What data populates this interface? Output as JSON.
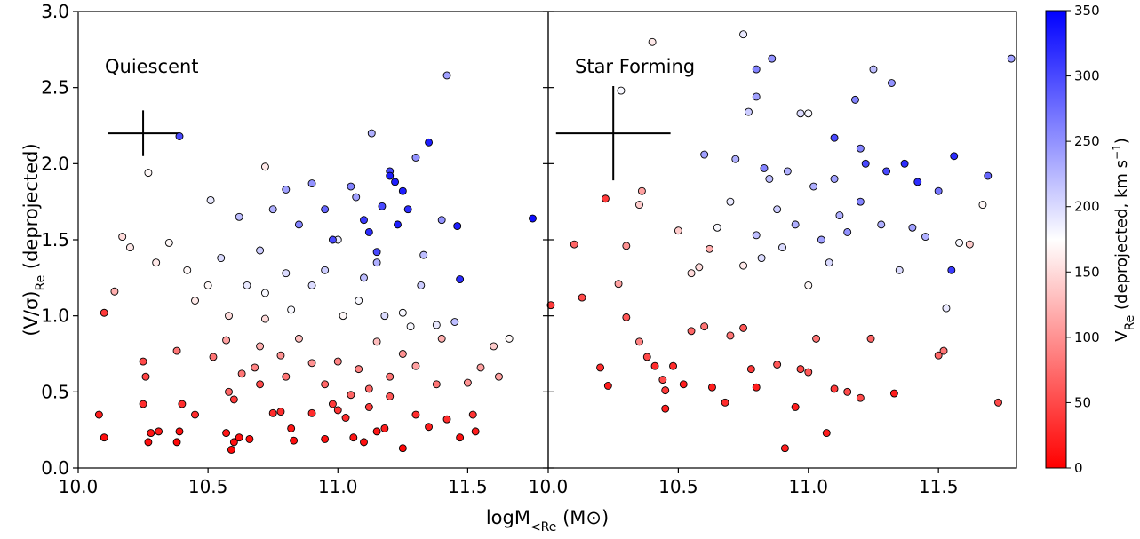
{
  "chart_data": {
    "type": "scatter",
    "ylabel": [
      {
        "text": "(V/σ)"
      },
      {
        "text": "Re",
        "sub": true
      },
      {
        "text": " (deprojected)"
      }
    ],
    "xlabel": [
      {
        "text": "log"
      },
      {
        "text": "M"
      },
      {
        "text": "<Re",
        "sub": true
      },
      {
        "text": " (M⊙)"
      }
    ],
    "ylim": [
      0,
      3
    ],
    "yticks": [
      {
        "value": 0,
        "label": "0.0"
      },
      {
        "value": 0.5,
        "label": "0.5"
      },
      {
        "value": 1,
        "label": "1.0"
      },
      {
        "value": 1.5,
        "label": "1.5"
      },
      {
        "value": 2,
        "label": "2.0"
      },
      {
        "value": 2.5,
        "label": "2.5"
      },
      {
        "value": 3,
        "label": "3.0"
      }
    ],
    "colorbar": {
      "cmap": "bwr",
      "clim": [
        0,
        350
      ],
      "ticks": [
        0,
        50,
        100,
        150,
        200,
        250,
        300,
        350
      ],
      "label": [
        {
          "text": "V"
        },
        {
          "text": "Re",
          "sub": true
        },
        {
          "text": " (deprojected, km s"
        },
        {
          "text": "−1",
          "sup": true
        },
        {
          "text": ")"
        }
      ]
    },
    "panels": [
      {
        "title": "Quiescent",
        "xlim": [
          10,
          11.81
        ],
        "xticks": [
          {
            "value": 10,
            "label": "10.0"
          },
          {
            "value": 10.5,
            "label": "10.5"
          },
          {
            "value": 11,
            "label": "11.0"
          },
          {
            "value": 11.5,
            "label": "11.5"
          }
        ],
        "error_bar": {
          "x": 10.25,
          "y": 2.2,
          "xerr": 0.137,
          "yerr": 0.15
        },
        "x": [
          10.08,
          10.1,
          10.25,
          10.27,
          10.28,
          10.31,
          10.38,
          10.39,
          10.4,
          10.45,
          10.57,
          10.6,
          10.62,
          10.59,
          10.66,
          10.75,
          10.78,
          10.82,
          10.83,
          10.9,
          10.95,
          10.98,
          11.03,
          11.06,
          11.1,
          11.15,
          11.18,
          11.25,
          11.3,
          11.35,
          11.42,
          11.47,
          11.53,
          11.52,
          11.0,
          11.12,
          10.6,
          10.7,
          10.1,
          10.25,
          10.26,
          10.38,
          10.52,
          10.57,
          10.58,
          10.63,
          10.68,
          10.7,
          10.72,
          10.78,
          10.8,
          10.85,
          10.9,
          10.95,
          11.0,
          11.05,
          11.08,
          11.12,
          11.15,
          11.2,
          11.25,
          11.3,
          11.38,
          11.4,
          11.5,
          11.55,
          11.6,
          11.66,
          11.62,
          11.2,
          10.17,
          10.14,
          10.2,
          10.3,
          10.35,
          10.42,
          10.45,
          10.5,
          10.55,
          10.58,
          10.65,
          10.7,
          10.72,
          10.8,
          10.82,
          10.9,
          10.95,
          11.0,
          11.02,
          11.08,
          11.1,
          11.15,
          11.18,
          11.25,
          11.28,
          11.32,
          11.38,
          11.45,
          11.33,
          11.4,
          10.27,
          10.39,
          10.51,
          10.62,
          10.72,
          10.75,
          10.8,
          10.85,
          10.9,
          10.95,
          10.98,
          11.05,
          11.07,
          11.1,
          11.12,
          11.13,
          11.17,
          11.2,
          11.22,
          11.23,
          11.25,
          11.27,
          11.3,
          11.35,
          11.42,
          11.47,
          11.46,
          11.75,
          11.2,
          11.15
        ],
        "y": [
          0.35,
          0.2,
          0.42,
          0.17,
          0.23,
          0.24,
          0.17,
          0.24,
          0.42,
          0.35,
          0.23,
          0.17,
          0.2,
          0.12,
          0.19,
          0.36,
          0.37,
          0.26,
          0.18,
          0.36,
          0.19,
          0.42,
          0.33,
          0.2,
          0.17,
          0.24,
          0.26,
          0.13,
          0.35,
          0.27,
          0.32,
          0.2,
          0.24,
          0.35,
          0.38,
          0.4,
          0.45,
          0.55,
          1.02,
          0.7,
          0.6,
          0.77,
          0.73,
          0.84,
          0.5,
          0.62,
          0.66,
          0.8,
          0.98,
          0.74,
          0.6,
          0.85,
          0.69,
          0.55,
          0.7,
          0.48,
          0.65,
          0.52,
          0.83,
          0.6,
          0.75,
          0.67,
          0.55,
          0.85,
          0.56,
          0.66,
          0.8,
          0.85,
          0.6,
          0.47,
          1.52,
          1.16,
          1.45,
          1.35,
          1.48,
          1.3,
          1.1,
          1.2,
          1.38,
          1.0,
          1.2,
          1.43,
          1.15,
          1.28,
          1.04,
          1.2,
          1.3,
          1.5,
          1.0,
          1.1,
          1.25,
          1.35,
          1.0,
          1.02,
          0.93,
          1.2,
          0.94,
          0.96,
          1.4,
          1.63,
          1.94,
          2.18,
          1.76,
          1.65,
          1.98,
          1.7,
          1.83,
          1.6,
          1.87,
          1.7,
          1.5,
          1.85,
          1.78,
          1.63,
          1.55,
          2.2,
          1.72,
          1.95,
          1.88,
          1.6,
          1.82,
          1.7,
          2.04,
          2.14,
          2.58,
          1.24,
          1.59,
          1.64,
          1.92,
          1.42
        ],
        "c": [
          20,
          10,
          30,
          10,
          15,
          20,
          5,
          10,
          30,
          30,
          15,
          10,
          10,
          5,
          10,
          30,
          30,
          15,
          10,
          30,
          10,
          40,
          30,
          15,
          10,
          15,
          20,
          5,
          30,
          20,
          30,
          10,
          20,
          35,
          35,
          40,
          40,
          50,
          40,
          50,
          45,
          80,
          80,
          110,
          70,
          80,
          90,
          120,
          150,
          100,
          80,
          130,
          100,
          70,
          90,
          70,
          90,
          70,
          130,
          80,
          100,
          110,
          80,
          120,
          100,
          110,
          140,
          170,
          110,
          60,
          150,
          120,
          160,
          160,
          170,
          170,
          160,
          170,
          200,
          150,
          190,
          210,
          180,
          200,
          180,
          200,
          210,
          190,
          170,
          180,
          220,
          230,
          200,
          180,
          180,
          210,
          190,
          220,
          220,
          250,
          170,
          300,
          190,
          220,
          160,
          230,
          240,
          260,
          250,
          280,
          300,
          260,
          240,
          310,
          320,
          230,
          300,
          300,
          330,
          330,
          330,
          320,
          250,
          330,
          240,
          320,
          330,
          340,
          330,
          300
        ]
      },
      {
        "title": "Star Forming",
        "xlim": [
          10,
          11.8
        ],
        "xticks": [
          {
            "value": 10,
            "label": "10.0"
          },
          {
            "value": 10.5,
            "label": "10.5"
          },
          {
            "value": 11,
            "label": "11.0"
          },
          {
            "value": 11.5,
            "label": "11.5"
          }
        ],
        "error_bar": {
          "x": 10.25,
          "y": 2.2,
          "xerr": 0.22,
          "yerr": 0.31
        },
        "x": [
          10.01,
          10.2,
          10.22,
          10.23,
          10.1,
          10.13,
          10.3,
          10.35,
          10.38,
          10.41,
          10.44,
          10.45,
          10.48,
          10.45,
          10.52,
          10.55,
          10.6,
          10.63,
          10.68,
          10.7,
          10.75,
          10.78,
          10.8,
          10.88,
          10.91,
          10.95,
          10.97,
          11.0,
          11.03,
          11.07,
          11.1,
          11.15,
          11.2,
          11.24,
          11.33,
          11.5,
          11.52,
          11.73,
          10.27,
          10.3,
          10.28,
          10.35,
          10.36,
          10.4,
          10.5,
          10.55,
          10.62,
          10.58,
          10.65,
          10.7,
          10.72,
          10.75,
          10.8,
          10.82,
          10.85,
          10.88,
          10.9,
          10.92,
          10.95,
          10.97,
          11.0,
          11.02,
          11.05,
          11.08,
          11.1,
          11.12,
          11.15,
          11.18,
          11.2,
          11.22,
          11.25,
          11.28,
          11.3,
          11.32,
          11.35,
          11.37,
          11.4,
          11.42,
          11.45,
          11.5,
          11.53,
          11.55,
          11.56,
          11.58,
          11.62,
          11.67,
          11.69,
          11.78,
          10.75,
          10.8,
          10.8,
          10.86,
          10.77,
          10.6,
          11.0,
          11.2,
          11.1,
          10.83
        ],
        "y": [
          1.07,
          0.66,
          1.77,
          0.54,
          1.47,
          1.12,
          0.99,
          0.83,
          0.73,
          0.67,
          0.58,
          0.51,
          0.67,
          0.39,
          0.55,
          0.9,
          0.93,
          0.53,
          0.43,
          0.87,
          0.92,
          0.65,
          0.53,
          0.68,
          0.13,
          0.4,
          0.65,
          0.63,
          0.85,
          0.23,
          0.52,
          0.5,
          0.46,
          0.85,
          0.49,
          0.74,
          0.77,
          0.43,
          1.21,
          1.46,
          2.48,
          1.73,
          1.82,
          2.8,
          1.56,
          1.28,
          1.44,
          1.32,
          1.58,
          1.75,
          2.03,
          1.33,
          1.53,
          1.38,
          1.9,
          1.7,
          1.45,
          1.95,
          1.6,
          2.33,
          1.2,
          1.85,
          1.5,
          1.35,
          1.9,
          1.66,
          1.55,
          2.42,
          1.75,
          2.0,
          2.62,
          1.6,
          1.95,
          2.53,
          1.3,
          2.0,
          1.58,
          1.88,
          1.52,
          1.82,
          1.05,
          1.3,
          2.05,
          1.48,
          1.47,
          1.73,
          1.92,
          2.69,
          2.85,
          2.62,
          2.44,
          2.69,
          2.34,
          2.06,
          2.33,
          2.1,
          2.17,
          1.97
        ],
        "c": [
          40,
          30,
          40,
          20,
          70,
          50,
          60,
          90,
          50,
          30,
          50,
          40,
          30,
          20,
          20,
          70,
          80,
          20,
          30,
          80,
          60,
          40,
          20,
          60,
          20,
          20,
          50,
          60,
          80,
          20,
          40,
          50,
          50,
          70,
          20,
          70,
          80,
          50,
          110,
          100,
          180,
          140,
          110,
          160,
          140,
          150,
          120,
          150,
          180,
          190,
          230,
          160,
          220,
          200,
          220,
          210,
          200,
          230,
          230,
          200,
          170,
          230,
          240,
          200,
          240,
          230,
          250,
          260,
          260,
          300,
          220,
          230,
          300,
          250,
          200,
          320,
          240,
          320,
          230,
          270,
          190,
          310,
          320,
          180,
          140,
          170,
          280,
          240,
          190,
          260,
          240,
          250,
          210,
          240,
          180,
          260,
          300,
          260
        ]
      }
    ]
  }
}
